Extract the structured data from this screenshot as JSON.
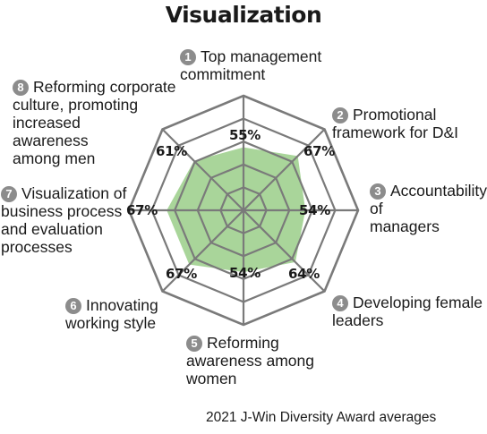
{
  "title": "Visualization",
  "footnote": "2021 J-Win Diversity Award averages",
  "chart_data": {
    "type": "radar",
    "title": "Visualization",
    "axes": [
      {
        "num": "1",
        "label": "Top management\ncommitment"
      },
      {
        "num": "2",
        "label": "Promotional\nframework for D&I"
      },
      {
        "num": "3",
        "label": "Accountability of\nmanagers"
      },
      {
        "num": "4",
        "label": "Developing female\nleaders"
      },
      {
        "num": "5",
        "label": "Reforming\nawareness among\nwomen"
      },
      {
        "num": "6",
        "label": "Innovating\nworking style"
      },
      {
        "num": "7",
        "label": "Visualization of\nbusiness process\nand evaluation\nprocesses"
      },
      {
        "num": "8",
        "label": "Reforming corporate\nculture, promoting\nincreased\nawareness\namong men"
      }
    ],
    "values": [
      55,
      67,
      54,
      64,
      54,
      67,
      67,
      61
    ],
    "value_labels": [
      "55%",
      "67%",
      "54%",
      "64%",
      "54%",
      "67%",
      "67%",
      "61%"
    ],
    "range": [
      0,
      100
    ],
    "rings": 5,
    "fill_color": "#a9d59a",
    "grid_color": "#7a7a7a",
    "badge_color": "#8c8c8c"
  }
}
